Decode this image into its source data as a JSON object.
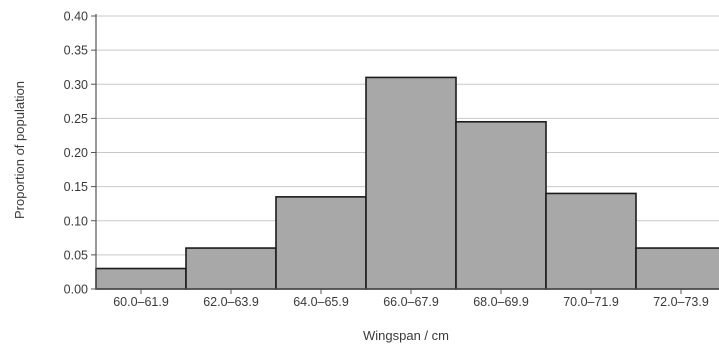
{
  "chart_data": {
    "type": "bar",
    "xlabel": "Wingspan / cm",
    "ylabel": "Proportion of population",
    "categories": [
      "60.0–61.9",
      "62.0–63.9",
      "64.0–65.9",
      "66.0–67.9",
      "68.0–69.9",
      "70.0–71.9",
      "72.0–73.9"
    ],
    "values": [
      0.03,
      0.06,
      0.135,
      0.31,
      0.245,
      0.14,
      0.06
    ],
    "ylim": [
      0,
      0.4
    ],
    "yticks": [
      "0.00",
      "0.05",
      "0.10",
      "0.15",
      "0.20",
      "0.25",
      "0.30",
      "0.35",
      "0.40"
    ],
    "grid": true,
    "colors": {
      "bar_fill": "#a8a8a8",
      "bar_edge": "#1c1c1c",
      "grid": "#c9c9c9",
      "axis": "#555555"
    }
  }
}
